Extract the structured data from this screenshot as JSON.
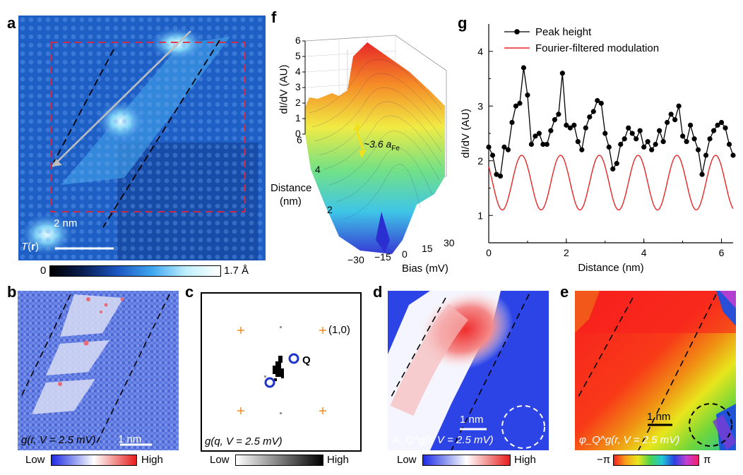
{
  "panels": {
    "a": {
      "letter": "a",
      "overlay_prefix": "T",
      "overlay_var": "r",
      "scale_label": "2 nm",
      "colorbar": {
        "min": "0",
        "max": "1.7 Å"
      }
    },
    "b": {
      "letter": "b",
      "overlay": "g(r, V = 2.5 mV)",
      "scale_label": "1 nm",
      "colorbar": {
        "low": "Low",
        "high": "High"
      }
    },
    "c": {
      "letter": "c",
      "overlay": "g(q, V = 2.5 mV)",
      "peak_label": "(1,0)",
      "q_label": "Q",
      "colorbar": {
        "low": "Low",
        "high": "High"
      }
    },
    "d": {
      "letter": "d",
      "overlay": "A_Q^g(r, V = 2.5 mV)",
      "scale_label": "1 nm",
      "colorbar": {
        "low": "Low",
        "high": "High"
      }
    },
    "e": {
      "letter": "e",
      "overlay": "φ_Q^g(r, V = 2.5 mV)",
      "scale_label": "1 nm",
      "colorbar": {
        "low": "−π",
        "high": "π"
      }
    },
    "f": {
      "letter": "f",
      "zlabel": "dI/dV (AU)",
      "ylabel_line1": "Distance",
      "ylabel_line2": "(nm)",
      "xlabel": "Bias (mV)",
      "z_ticks": [
        "0",
        "1",
        "2",
        "3",
        "4",
        "5",
        "6"
      ],
      "y_ticks": [
        "2",
        "4",
        "6"
      ],
      "x_ticks": [
        "−30",
        "−15",
        "0",
        "15",
        "30"
      ],
      "annotation": "~3.6 a",
      "annotation_sub": "Fe"
    },
    "g": {
      "letter": "g"
    }
  },
  "chart_data": {
    "type": "line",
    "title": "",
    "xlabel": "Distance (nm)",
    "ylabel": "dI/dV (AU)",
    "xlim": [
      0,
      6.3
    ],
    "ylim": [
      0.5,
      4.5
    ],
    "x_ticks": [
      0,
      2,
      4,
      6
    ],
    "y_ticks": [
      1,
      2,
      3,
      4
    ],
    "grid": false,
    "legend": "top-left",
    "series": [
      {
        "name": "Peak height",
        "color": "#000000",
        "marker": "circle",
        "x": [
          0.0,
          0.1,
          0.2,
          0.3,
          0.4,
          0.5,
          0.6,
          0.7,
          0.8,
          0.9,
          1.0,
          1.1,
          1.2,
          1.3,
          1.4,
          1.5,
          1.6,
          1.7,
          1.8,
          1.9,
          2.0,
          2.1,
          2.2,
          2.3,
          2.4,
          2.5,
          2.6,
          2.7,
          2.8,
          2.9,
          3.0,
          3.1,
          3.2,
          3.3,
          3.4,
          3.5,
          3.6,
          3.7,
          3.8,
          3.9,
          4.0,
          4.1,
          4.2,
          4.3,
          4.4,
          4.5,
          4.6,
          4.7,
          4.8,
          4.9,
          5.0,
          5.1,
          5.2,
          5.3,
          5.4,
          5.5,
          5.6,
          5.7,
          5.8,
          5.9,
          6.0,
          6.1,
          6.2,
          6.3
        ],
        "y": [
          2.25,
          2.1,
          1.75,
          1.72,
          2.25,
          2.2,
          2.7,
          3.0,
          3.05,
          3.7,
          3.2,
          2.3,
          2.45,
          2.5,
          2.3,
          2.3,
          2.55,
          2.75,
          2.85,
          3.6,
          2.65,
          2.6,
          2.65,
          2.35,
          2.2,
          2.6,
          2.8,
          2.9,
          3.1,
          3.05,
          2.5,
          2.25,
          1.85,
          1.95,
          2.3,
          2.4,
          2.6,
          2.5,
          2.4,
          2.55,
          2.25,
          2.35,
          2.2,
          2.3,
          2.55,
          2.35,
          2.7,
          2.85,
          2.75,
          3.0,
          2.45,
          2.35,
          2.65,
          2.4,
          2.2,
          1.75,
          2.1,
          2.4,
          2.55,
          2.65,
          2.7,
          2.6,
          2.3,
          2.1
        ]
      },
      {
        "name": "Fourier-filtered modulation",
        "color": "#e8262a",
        "marker": "none",
        "model": {
          "offset": 1.6,
          "amplitude": 0.5,
          "period_nm": 1.0,
          "phase_nm": 0.85
        }
      }
    ]
  }
}
